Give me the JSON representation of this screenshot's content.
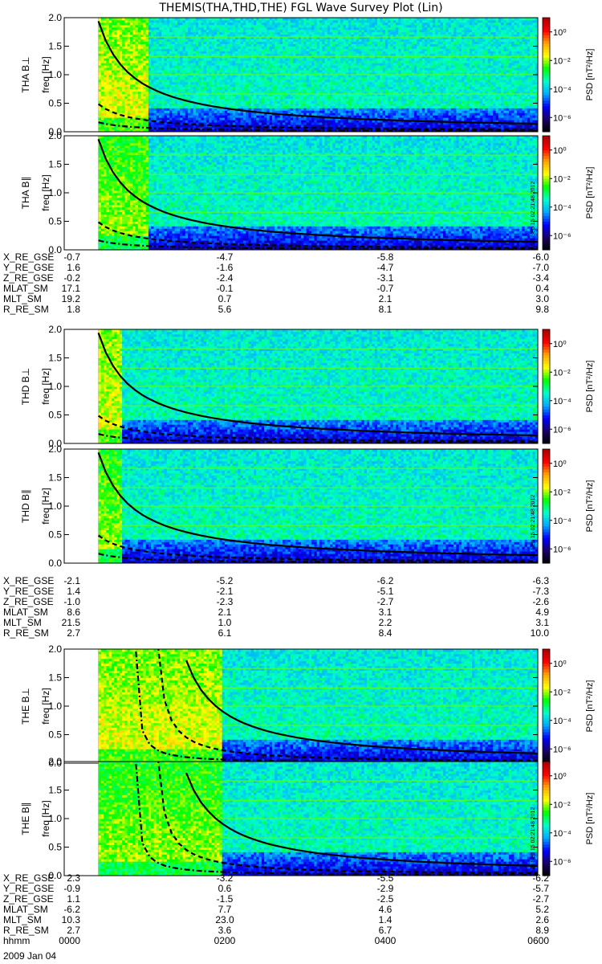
{
  "title": "THEMIS(THA,THD,THE) FGL Wave Survey Plot (Lin)",
  "colorbar": {
    "label": "PSD [nT²/Hz]",
    "tick_labels": [
      "10⁰",
      "10⁻²",
      "10⁻⁴",
      "10⁻⁶"
    ],
    "tick_exponents": [
      0,
      -2,
      -4,
      -6
    ],
    "range_exponents": [
      -7,
      1
    ],
    "colormap": [
      "#000000",
      "#1a0066",
      "#0000ff",
      "#00aaff",
      "#00ffcc",
      "#00ff00",
      "#ffff00",
      "#ffa500",
      "#ff0000",
      "#aa0000"
    ]
  },
  "axis": {
    "freq_ticks": [
      "0.0",
      "0.5",
      "1.0",
      "1.5",
      "2.0"
    ],
    "ylabel": "freq [Hz]",
    "ylim": [
      0,
      2
    ]
  },
  "stamp": "Sat Sep 15 02:21:48 2012",
  "chart_data": [
    {
      "type": "heatmap",
      "probe": "THA",
      "panel_label": "THA B⊥",
      "ylabel": "freq [Hz]",
      "ylim": [
        0,
        2
      ],
      "x_unit": "hhmm",
      "xlim": [
        "0000",
        "0600"
      ],
      "data_start": "0026",
      "cutover": "0104",
      "mode": "perp",
      "stamp": false
    },
    {
      "type": "heatmap",
      "probe": "THA",
      "panel_label": "THA B∥",
      "ylabel": "freq [Hz]",
      "ylim": [
        0,
        2
      ],
      "x_unit": "hhmm",
      "xlim": [
        "0000",
        "0600"
      ],
      "data_start": "0026",
      "cutover": "0104",
      "mode": "par",
      "stamp": true
    },
    {
      "type": "heatmap",
      "probe": "THD",
      "panel_label": "THD B⊥",
      "ylabel": "freq [Hz]",
      "ylim": [
        0,
        2
      ],
      "x_unit": "hhmm",
      "xlim": [
        "0000",
        "0600"
      ],
      "data_start": "0026",
      "cutover": "0044",
      "mode": "perp",
      "stamp": false
    },
    {
      "type": "heatmap",
      "probe": "THD",
      "panel_label": "THD B∥",
      "ylabel": "freq [Hz]",
      "ylim": [
        0,
        2
      ],
      "x_unit": "hhmm",
      "xlim": [
        "0000",
        "0600"
      ],
      "data_start": "0026",
      "cutover": "0044",
      "mode": "par",
      "stamp": true
    },
    {
      "type": "heatmap",
      "probe": "THE",
      "panel_label": "THE B⊥",
      "ylabel": "freq [Hz]",
      "ylim": [
        0,
        2
      ],
      "x_unit": "hhmm",
      "xlim": [
        "0000",
        "0600"
      ],
      "data_start": "0026",
      "cutover": "0200",
      "mode": "perp",
      "stamp": false
    },
    {
      "type": "heatmap",
      "probe": "THE",
      "panel_label": "THE B∥",
      "ylabel": "freq [Hz]",
      "ylim": [
        0,
        2
      ],
      "x_unit": "hhmm",
      "xlim": [
        "0000",
        "0600"
      ],
      "data_start": "0026",
      "cutover": "0200",
      "mode": "par",
      "stamp": true
    }
  ],
  "ephemeris": [
    {
      "rows": [
        {
          "label": "X_RE_GSE",
          "values": [
            "-0.7",
            "-4.7",
            "-5.8",
            "-6.0"
          ]
        },
        {
          "label": "Y_RE_GSE",
          "values": [
            "1.6",
            "-1.6",
            "-4.7",
            "-7.0"
          ]
        },
        {
          "label": "Z_RE_GSE",
          "values": [
            "-0.2",
            "-2.4",
            "-3.1",
            "-3.4"
          ]
        },
        {
          "label": "MLAT_SM",
          "values": [
            "17.1",
            "-0.1",
            "-0.7",
            "0.4"
          ]
        },
        {
          "label": "MLT_SM",
          "values": [
            "19.2",
            "0.7",
            "2.1",
            "3.0"
          ]
        },
        {
          "label": "R_RE_SM",
          "values": [
            "1.8",
            "5.6",
            "8.1",
            "9.8"
          ]
        }
      ]
    },
    {
      "rows": [
        {
          "label": "X_RE_GSE",
          "values": [
            "-2.1",
            "-5.2",
            "-6.2",
            "-6.3"
          ]
        },
        {
          "label": "Y_RE_GSE",
          "values": [
            "1.4",
            "-2.1",
            "-5.1",
            "-7.3"
          ]
        },
        {
          "label": "Z_RE_GSE",
          "values": [
            "-1.0",
            "-2.3",
            "-2.7",
            "-2.6"
          ]
        },
        {
          "label": "MLAT_SM",
          "values": [
            "8.6",
            "2.1",
            "3.1",
            "4.9"
          ]
        },
        {
          "label": "MLT_SM",
          "values": [
            "21.5",
            "1.0",
            "2.2",
            "3.1"
          ]
        },
        {
          "label": "R_RE_SM",
          "values": [
            "2.7",
            "6.1",
            "8.4",
            "10.0"
          ]
        }
      ]
    },
    {
      "rows": [
        {
          "label": "X_RE_GSE",
          "values": [
            "2.3",
            "-3.2",
            "-5.5",
            "-6.2"
          ]
        },
        {
          "label": "Y_RE_GSE",
          "values": [
            "-0.9",
            "0.6",
            "-2.9",
            "-5.7"
          ]
        },
        {
          "label": "Z_RE_GSE",
          "values": [
            "1.1",
            "-1.5",
            "-2.5",
            "-2.7"
          ]
        },
        {
          "label": "MLAT_SM",
          "values": [
            "-6.2",
            "7.7",
            "4.6",
            "5.2"
          ]
        },
        {
          "label": "MLT_SM",
          "values": [
            "10.3",
            "23.0",
            "1.4",
            "2.6"
          ]
        },
        {
          "label": "R_RE_SM",
          "values": [
            "2.7",
            "3.6",
            "6.7",
            "8.9"
          ]
        },
        {
          "label": "hhmm",
          "values": [
            "0000",
            "0200",
            "0400",
            "0600"
          ]
        }
      ]
    }
  ],
  "date_label": "2009 Jan 04"
}
